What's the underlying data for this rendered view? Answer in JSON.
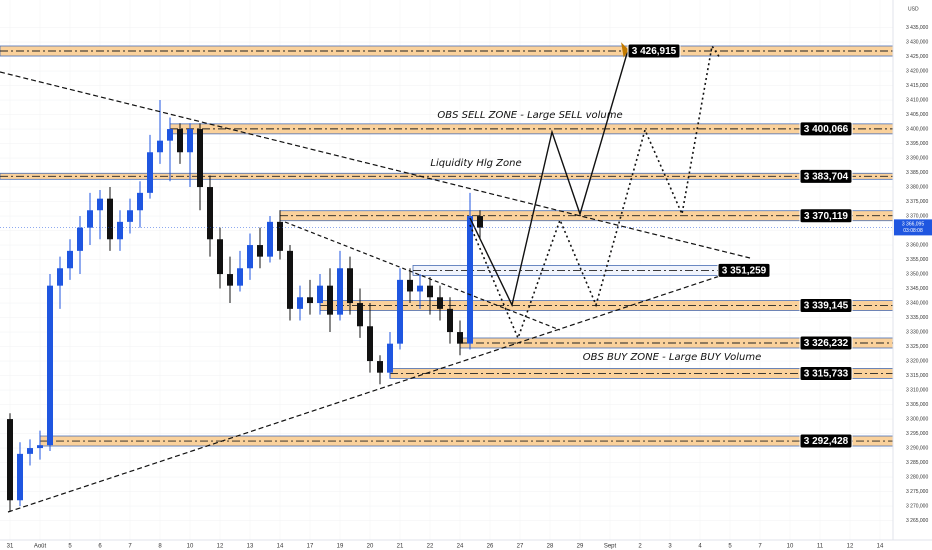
{
  "chart_data": {
    "type": "candlestick",
    "currency": "USD",
    "up_color": "#1f56e0",
    "down_color": "#111111",
    "xlim": [
      -1,
      88
    ],
    "ylim": [
      3258.3,
      3444.5
    ],
    "xticks": [
      {
        "value": 0,
        "label": "31"
      },
      {
        "value": 3,
        "label": "Août"
      },
      {
        "value": 6,
        "label": "5"
      },
      {
        "value": 9,
        "label": "6"
      },
      {
        "value": 12,
        "label": "7"
      },
      {
        "value": 15,
        "label": "8"
      },
      {
        "value": 18,
        "label": "10"
      },
      {
        "value": 21,
        "label": "12"
      },
      {
        "value": 24,
        "label": "13"
      },
      {
        "value": 27,
        "label": "14"
      },
      {
        "value": 30,
        "label": "17"
      },
      {
        "value": 33,
        "label": "19"
      },
      {
        "value": 36,
        "label": "20"
      },
      {
        "value": 39,
        "label": "21"
      },
      {
        "value": 42,
        "label": "22"
      },
      {
        "value": 45,
        "label": "24"
      },
      {
        "value": 48,
        "label": "26"
      },
      {
        "value": 51,
        "label": "27"
      },
      {
        "value": 54,
        "label": "28"
      },
      {
        "value": 57,
        "label": "29"
      },
      {
        "value": 60,
        "label": "Sept"
      },
      {
        "value": 63,
        "label": "2"
      },
      {
        "value": 66,
        "label": "3"
      },
      {
        "value": 69,
        "label": "4"
      },
      {
        "value": 72,
        "label": "5"
      },
      {
        "value": 75,
        "label": "7"
      },
      {
        "value": 78,
        "label": "10"
      },
      {
        "value": 81,
        "label": "11"
      },
      {
        "value": 84,
        "label": "12"
      },
      {
        "value": 87,
        "label": "14"
      }
    ],
    "yticks": [
      {
        "value": 3265,
        "label": "3 265,000"
      },
      {
        "value": 3270,
        "label": "3 270,000"
      },
      {
        "value": 3275,
        "label": "3 275,000"
      },
      {
        "value": 3280,
        "label": "3 280,000"
      },
      {
        "value": 3285,
        "label": "3 285,000"
      },
      {
        "value": 3290,
        "label": "3 290,000"
      },
      {
        "value": 3295,
        "label": "3 295,000"
      },
      {
        "value": 3300,
        "label": "3 300,000"
      },
      {
        "value": 3305,
        "label": "3 305,000"
      },
      {
        "value": 3310,
        "label": "3 310,000"
      },
      {
        "value": 3315,
        "label": "3 315,000"
      },
      {
        "value": 3320,
        "label": "3 320,000"
      },
      {
        "value": 3325,
        "label": "3 325,000"
      },
      {
        "value": 3330,
        "label": "3 330,000"
      },
      {
        "value": 3335,
        "label": "3 335,000"
      },
      {
        "value": 3340,
        "label": "3 340,000"
      },
      {
        "value": 3345,
        "label": "3 345,000"
      },
      {
        "value": 3350,
        "label": "3 350,000"
      },
      {
        "value": 3355,
        "label": "3 355,000"
      },
      {
        "value": 3360,
        "label": "3 360,000"
      },
      {
        "value": 3365,
        "label": "3 365,000"
      },
      {
        "value": 3370,
        "label": "3 370,000"
      },
      {
        "value": 3375,
        "label": "3 375,000"
      },
      {
        "value": 3380,
        "label": "3 380,000"
      },
      {
        "value": 3385,
        "label": "3 385,000"
      },
      {
        "value": 3390,
        "label": "3 390,000"
      },
      {
        "value": 3395,
        "label": "3 395,000"
      },
      {
        "value": 3400,
        "label": "3 400,000"
      },
      {
        "value": 3405,
        "label": "3 405,000"
      },
      {
        "value": 3410,
        "label": "3 410,000"
      },
      {
        "value": 3415,
        "label": "3 415,000"
      },
      {
        "value": 3420,
        "label": "3 420,000"
      },
      {
        "value": 3425,
        "label": "3 425,000"
      },
      {
        "value": 3430,
        "label": "3 430,000"
      },
      {
        "value": 3435,
        "label": "3 435,000"
      }
    ],
    "open": [
      3300,
      3272,
      3288,
      3290,
      3291,
      3346,
      3352,
      3358,
      3366,
      3372,
      3376,
      3362,
      3368,
      3372,
      3378,
      3392,
      3396,
      3400,
      3392,
      3400,
      3380,
      3362,
      3350,
      3346,
      3352,
      3360,
      3356,
      3368,
      3358,
      3338,
      3342,
      3340,
      3346,
      3336,
      3352,
      3340,
      3332,
      3320,
      3316,
      3326,
      3348,
      3344,
      3346,
      3342,
      3338,
      3330,
      3326,
      3370
    ],
    "high": [
      3302,
      3292,
      3293,
      3296,
      3350,
      3356,
      3362,
      3370,
      3378,
      3379,
      3380,
      3372,
      3376,
      3382,
      3398,
      3410,
      3404,
      3402,
      3402,
      3402,
      3384,
      3366,
      3356,
      3358,
      3364,
      3366,
      3370,
      3372,
      3360,
      3346,
      3348,
      3350,
      3352,
      3358,
      3356,
      3345,
      3340,
      3322,
      3330,
      3352,
      3352,
      3350,
      3349,
      3346,
      3342,
      3334,
      3378,
      3372
    ],
    "low": [
      3268,
      3270,
      3284,
      3286,
      3289,
      3338,
      3348,
      3350,
      3360,
      3362,
      3358,
      3358,
      3364,
      3366,
      3376,
      3388,
      3382,
      3388,
      3380,
      3372,
      3356,
      3345,
      3340,
      3344,
      3348,
      3352,
      3354,
      3355,
      3334,
      3334,
      3336,
      3336,
      3330,
      3334,
      3336,
      3328,
      3316,
      3312,
      3314,
      3324,
      3340,
      3338,
      3336,
      3334,
      3326,
      3322,
      3324,
      3362
    ],
    "close": [
      3272,
      3288,
      3290,
      3291,
      3346,
      3352,
      3358,
      3366,
      3372,
      3376,
      3362,
      3368,
      3372,
      3378,
      3392,
      3396,
      3400,
      3392,
      3400,
      3380,
      3362,
      3350,
      3346,
      3352,
      3360,
      3356,
      3368,
      3358,
      3338,
      3342,
      3340,
      3346,
      3336,
      3352,
      3340,
      3332,
      3320,
      3316,
      3326,
      3348,
      3344,
      3346,
      3342,
      3338,
      3330,
      3326,
      3370,
      3366
    ],
    "levels": [
      {
        "value": 3426.915,
        "label": "3 426,915"
      },
      {
        "value": 3400.066,
        "label": "3 400,066"
      },
      {
        "value": 3383.704,
        "label": "3 383,704"
      },
      {
        "value": 3370.119,
        "label": "3 370,119"
      },
      {
        "value": 3351.259,
        "label": "3 351,259"
      },
      {
        "value": 3339.145,
        "label": "3 339,145"
      },
      {
        "value": 3326.232,
        "label": "3 326,232"
      },
      {
        "value": 3315.733,
        "label": "3 315,733"
      },
      {
        "value": 3292.428,
        "label": "3 292,428"
      }
    ],
    "last_price": {
      "value": 3366.095,
      "label": "3 366,095"
    },
    "countdown": "03:08:08",
    "annotations": [
      "OBS SELL ZONE - Large SELL volume",
      "Liquidity Hlg Zone",
      "OBS BUY ZONE - Large BUY Volume"
    ]
  }
}
